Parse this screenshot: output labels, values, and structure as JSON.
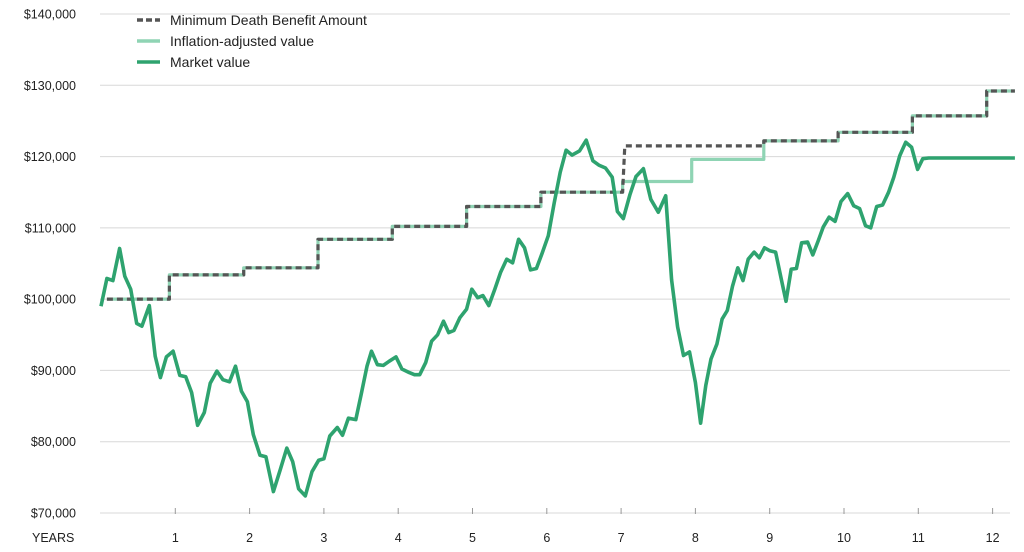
{
  "chart_data": {
    "type": "line",
    "title": "",
    "xlabel": "YEARS",
    "ylabel": "",
    "xlim": [
      0,
      12.3
    ],
    "ylim": [
      70000,
      140000
    ],
    "x_ticks": [
      1,
      2,
      3,
      4,
      5,
      6,
      7,
      8,
      9,
      10,
      11,
      12
    ],
    "x_tick_labels": [
      "1",
      "2",
      "3",
      "4",
      "5",
      "6",
      "7",
      "8",
      "9",
      "10",
      "11",
      "12"
    ],
    "y_ticks": [
      70000,
      80000,
      90000,
      100000,
      110000,
      120000,
      130000,
      140000
    ],
    "y_tick_labels": [
      "$70,000",
      "$80,000",
      "$90,000",
      "$100,000",
      "$110,000",
      "$120,000",
      "$130,000",
      "$140,000"
    ],
    "grid": "horizontal",
    "legend_position": "top-left",
    "series": [
      {
        "name": "Minimum Death Benefit Amount",
        "style": "dashed",
        "color": "#555555",
        "x": [
          0.08,
          0.92,
          0.92,
          1.92,
          1.92,
          2.92,
          2.92,
          3.92,
          3.92,
          4.92,
          4.92,
          5.92,
          5.92,
          7.02,
          7.05,
          8.92,
          8.92,
          9.92,
          9.92,
          10.92,
          10.92,
          11.92,
          11.92,
          12.3
        ],
        "y": [
          100000,
          100000,
          103400,
          103400,
          104400,
          104400,
          108400,
          108400,
          110200,
          110200,
          113000,
          113000,
          115000,
          115000,
          121500,
          121500,
          122200,
          122200,
          123400,
          123400,
          125700,
          125700,
          129200,
          129200
        ]
      },
      {
        "name": "Inflation-adjusted value",
        "style": "solid",
        "color": "#8fd4b4",
        "x": [
          0.08,
          0.92,
          0.92,
          1.92,
          1.92,
          2.92,
          2.92,
          3.92,
          3.92,
          4.92,
          4.92,
          5.92,
          5.92,
          7.02,
          7.02,
          7.95,
          7.95,
          8.92,
          8.92,
          9.92,
          9.92,
          10.92,
          10.92,
          11.92,
          11.92,
          12.3
        ],
        "y": [
          100000,
          100000,
          103400,
          103400,
          104400,
          104400,
          108400,
          108400,
          110200,
          110200,
          113000,
          113000,
          115000,
          115000,
          116500,
          116500,
          119600,
          119600,
          122200,
          122200,
          123400,
          123400,
          125700,
          125700,
          129200,
          129200
        ]
      },
      {
        "name": "Market value",
        "style": "solid",
        "color": "#2ea36f",
        "x": [
          0.0,
          0.08,
          0.16,
          0.25,
          0.32,
          0.4,
          0.48,
          0.55,
          0.65,
          0.73,
          0.8,
          0.88,
          0.97,
          1.06,
          1.14,
          1.22,
          1.3,
          1.39,
          1.47,
          1.56,
          1.64,
          1.73,
          1.81,
          1.89,
          1.97,
          2.05,
          2.14,
          2.22,
          2.32,
          2.41,
          2.5,
          2.58,
          2.66,
          2.75,
          2.84,
          2.93,
          3.0,
          3.08,
          3.18,
          3.25,
          3.33,
          3.43,
          3.5,
          3.58,
          3.64,
          3.72,
          3.8,
          3.88,
          3.97,
          4.05,
          4.15,
          4.22,
          4.29,
          4.37,
          4.45,
          4.53,
          4.61,
          4.68,
          4.75,
          4.83,
          4.92,
          4.99,
          5.07,
          5.14,
          5.22,
          5.3,
          5.38,
          5.46,
          5.54,
          5.62,
          5.7,
          5.78,
          5.86,
          5.94,
          6.02,
          6.1,
          6.18,
          6.26,
          6.34,
          6.44,
          6.53,
          6.62,
          6.7,
          6.79,
          6.88,
          6.95,
          7.03,
          7.12,
          7.2,
          7.3,
          7.4,
          7.5,
          7.6,
          7.68,
          7.76,
          7.84,
          7.92,
          8.0,
          8.07,
          8.14,
          8.21,
          8.29,
          8.36,
          8.43,
          8.5,
          8.57,
          8.64,
          8.71,
          8.79,
          8.86,
          8.93,
          9.0,
          9.08,
          9.16,
          9.22,
          9.29,
          9.36,
          9.43,
          9.51,
          9.58,
          9.65,
          9.72,
          9.8,
          9.88,
          9.96,
          10.05,
          10.13,
          10.21,
          10.29,
          10.36,
          10.44,
          10.52,
          10.6,
          10.67,
          10.75,
          10.83,
          10.91,
          10.99,
          11.06,
          11.14,
          11.22,
          11.3,
          11.38,
          11.46,
          11.54,
          11.62,
          11.7,
          11.78,
          11.86,
          11.94,
          12.01,
          12.08,
          12.15,
          12.22,
          12.3
        ],
        "y": [
          99000,
          102900,
          102600,
          107100,
          103200,
          101400,
          96600,
          96200,
          99100,
          92000,
          89000,
          91900,
          92700,
          89300,
          89100,
          86900,
          82300,
          84100,
          88200,
          89900,
          88700,
          88400,
          90600,
          87100,
          85600,
          81000,
          78100,
          77900,
          73000,
          76000,
          79100,
          77200,
          73400,
          72400,
          75800,
          77400,
          77600,
          80800,
          82000,
          80900,
          83300,
          83100,
          86600,
          90600,
          92700,
          90800,
          90700,
          91300,
          91900,
          90200,
          89700,
          89400,
          89400,
          91100,
          94100,
          95000,
          96900,
          95300,
          95600,
          97400,
          98600,
          101400,
          100200,
          100500,
          99100,
          101400,
          103800,
          105600,
          105100,
          108400,
          107200,
          104100,
          104300,
          106500,
          108900,
          113500,
          117800,
          120900,
          120200,
          120800,
          122300,
          119400,
          118800,
          118400,
          117100,
          112300,
          111300,
          114700,
          117200,
          118300,
          114000,
          112200,
          114500,
          102700,
          96100,
          92100,
          92600,
          88300,
          82600,
          87900,
          91600,
          93700,
          97200,
          98400,
          101800,
          104400,
          102600,
          105600,
          106600,
          105800,
          107200,
          106800,
          106600,
          102600,
          99700,
          104200,
          104300,
          107900,
          108000,
          106200,
          108100,
          110100,
          111500,
          110900,
          113700,
          114800,
          113100,
          112700,
          110300,
          110000,
          113000,
          113200,
          115000,
          117100,
          120100,
          122000,
          121300,
          118200,
          119700,
          119800,
          119800,
          119800,
          119800,
          119800,
          119800,
          119800,
          119800,
          119800,
          119800,
          119800,
          119800,
          119800,
          119800,
          119800,
          119800
        ]
      }
    ]
  }
}
